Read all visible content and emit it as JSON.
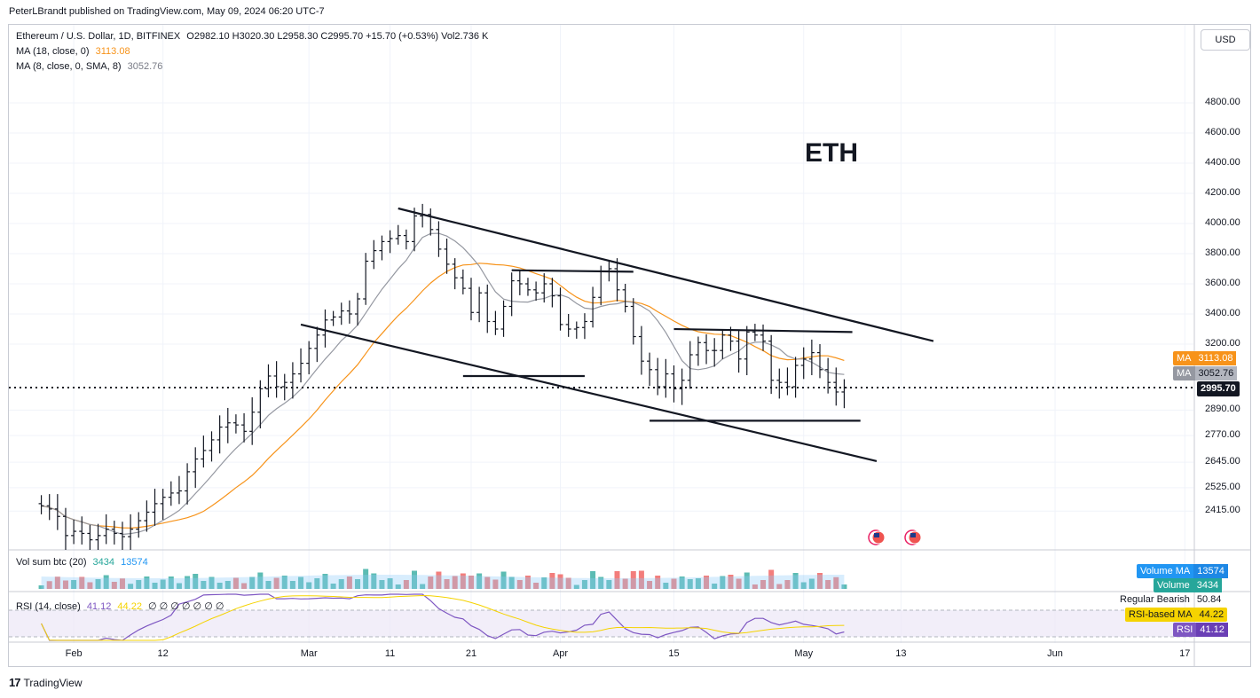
{
  "header": {
    "publisher": "PeterLBrandt published on TradingView.com, May 09, 2024 06:20 UTC-7"
  },
  "legend": {
    "symbol": "Ethereum / U.S. Dollar, 1D, BITFINEX",
    "ohlc": "O2982.10  H3020.30  L2958.30  C2995.70  +15.70 (+0.53%)  Vol2.736 K",
    "ma18_label": "MA (18, close, 0)",
    "ma18_value": "3113.08",
    "ma8_label": "MA (8, close, 0, SMA, 8)",
    "ma8_value": "3052.76",
    "vol_label": "Vol sum btc (20)",
    "vol_value": "3434",
    "vol_ma_value": "13574",
    "rsi_label": "RSI (14, close)",
    "rsi_value": "41.12",
    "rsi_ma_value": "44.22",
    "rsi_extra": "∅  ∅  ∅  ∅  ∅  ∅  ∅"
  },
  "currency_button": "USD",
  "annotation_text": "ETH",
  "price_tags": {
    "ma18": {
      "k": "MA",
      "v": "3113.08"
    },
    "ma8": {
      "k": "MA",
      "v": "3052.76"
    },
    "last": "2995.70"
  },
  "volume_tags": {
    "vol_ma": {
      "k": "Volume MA",
      "v": "13574"
    },
    "vol": {
      "k": "Volume",
      "v": "3434"
    }
  },
  "rsi_tags": {
    "regular_bearish": {
      "k": "Regular Bearish",
      "v": "50.84"
    },
    "rsi_ma": {
      "k": "RSI-based MA",
      "v": "44.22"
    },
    "rsi": {
      "k": "RSI",
      "v": "41.12"
    }
  },
  "branding": "TradingView",
  "colors": {
    "ma18": "#f7931a",
    "ma8": "#9598a1",
    "up": "#26a69a",
    "down": "#ef5350",
    "rsi": "#7e57c2",
    "volma": "#2196f3"
  },
  "chart_data": {
    "type": "ohlc",
    "y_ticks": [
      "4800.00",
      "4600.00",
      "4400.00",
      "4200.00",
      "4000.00",
      "3800.00",
      "3600.00",
      "3400.00",
      "3200.00",
      "2890.00",
      "2770.00",
      "2645.00",
      "2525.00",
      "2415.00"
    ],
    "x_ticks": [
      "Feb",
      "12",
      "Mar",
      "11",
      "21",
      "Apr",
      "15",
      "May",
      "13",
      "Jun",
      "17"
    ],
    "trendlines": [
      {
        "name": "upper channel",
        "from": {
          "date": "2024-03-12",
          "price": 4100
        },
        "to": {
          "date": "2024-05-17",
          "price": 3220
        }
      },
      {
        "name": "lower channel",
        "from": {
          "date": "2024-02-29",
          "price": 3330
        },
        "to": {
          "date": "2024-05-10",
          "price": 2650
        }
      },
      {
        "name": "support March",
        "from": {
          "date": "2024-03-20",
          "price": 3050
        },
        "to": {
          "date": "2024-04-04",
          "price": 3050
        }
      },
      {
        "name": "resistance April",
        "from": {
          "date": "2024-03-26",
          "price": 3690
        },
        "to": {
          "date": "2024-04-10",
          "price": 3680
        }
      },
      {
        "name": "range top",
        "from": {
          "date": "2024-04-15",
          "price": 3300
        },
        "to": {
          "date": "2024-05-07",
          "price": 3280
        }
      },
      {
        "name": "range bottom",
        "from": {
          "date": "2024-04-12",
          "price": 2840
        },
        "to": {
          "date": "2024-05-08",
          "price": 2840
        }
      }
    ],
    "close": [
      2440,
      2425,
      2390,
      2300,
      2320,
      2310,
      2280,
      2300,
      2330,
      2310,
      2295,
      2330,
      2370,
      2410,
      2450,
      2480,
      2500,
      2510,
      2600,
      2660,
      2700,
      2750,
      2810,
      2830,
      2820,
      2790,
      2880,
      2990,
      3050,
      3000,
      3020,
      3060,
      3110,
      3180,
      3260,
      3360,
      3380,
      3420,
      3400,
      3500,
      3750,
      3820,
      3880,
      3900,
      3920,
      3880,
      4050,
      4060,
      3960,
      3830,
      3730,
      3640,
      3570,
      3410,
      3540,
      3350,
      3300,
      3450,
      3620,
      3600,
      3560,
      3540,
      3600,
      3520,
      3330,
      3300,
      3310,
      3350,
      3510,
      3680,
      3700,
      3560,
      3450,
      3250,
      3120,
      3080,
      3000,
      3060,
      2990,
      3030,
      3150,
      3210,
      3170,
      3170,
      3260,
      3220,
      3130,
      3280,
      3260,
      3220,
      3030,
      3020,
      3000,
      3100,
      3130,
      3160,
      3080,
      3020,
      2975,
      2995
    ]
  }
}
